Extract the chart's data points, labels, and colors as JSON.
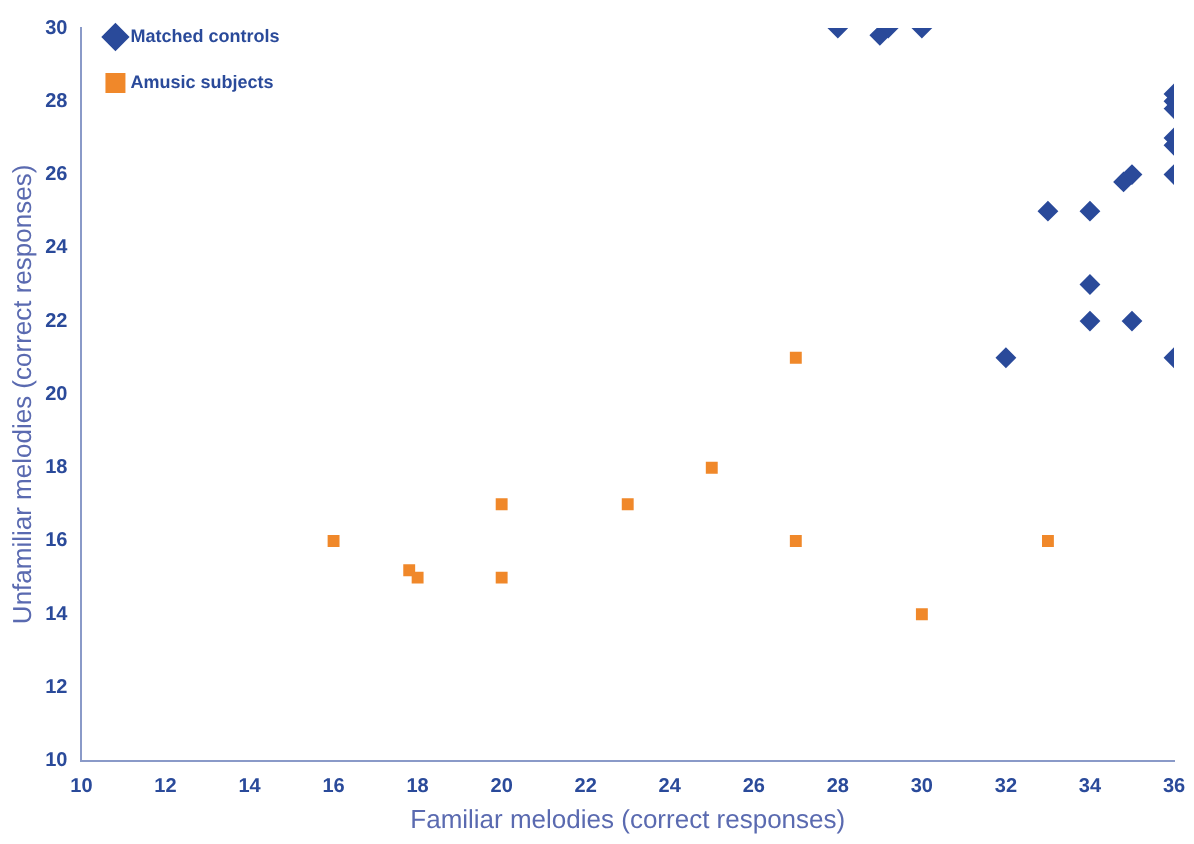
{
  "chart_data": {
    "type": "scatter",
    "xlabel": "Familiar melodies (correct responses)",
    "ylabel": "Unfamiliar melodies (correct responses)",
    "xlim": [
      10,
      36
    ],
    "xticks": [
      10,
      12,
      14,
      16,
      18,
      20,
      22,
      24,
      26,
      28,
      30,
      32,
      34,
      36
    ],
    "ylim": [
      10,
      30
    ],
    "yticks": [
      10,
      12,
      14,
      16,
      18,
      20,
      22,
      24,
      26,
      28,
      30
    ],
    "grid": false,
    "legend": "top left",
    "series": [
      {
        "name": "Matched controls",
        "color": "#2a4a9a",
        "marker": "diamond",
        "x": [
          28,
          29,
          29.2,
          30,
          33,
          34,
          34,
          34,
          35,
          32,
          36,
          34.8,
          35,
          36,
          36,
          36,
          36,
          36,
          36
        ],
        "values": [
          30,
          29.8,
          30,
          30,
          25,
          25,
          23,
          22,
          22,
          21,
          21,
          25.8,
          26,
          26,
          26.8,
          27,
          27.8,
          28,
          28.2
        ]
      },
      {
        "name": "Amusic subjects",
        "color": "#f0882a",
        "marker": "square",
        "x": [
          16,
          17.8,
          18,
          20,
          20,
          23,
          25,
          27,
          27,
          30,
          33
        ],
        "values": [
          16,
          15.2,
          15,
          17,
          15,
          17,
          18,
          21,
          16,
          14,
          16
        ]
      }
    ]
  }
}
